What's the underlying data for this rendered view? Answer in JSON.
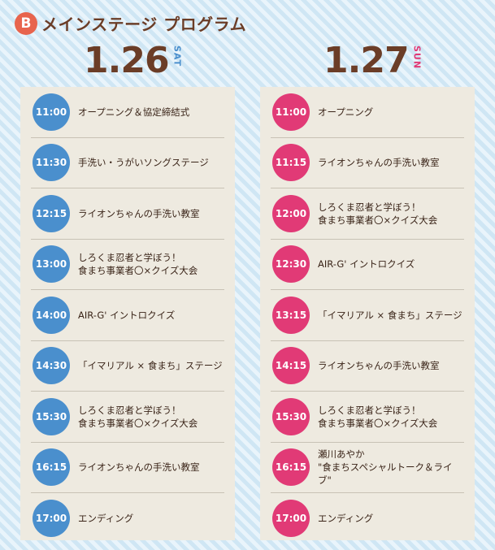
{
  "header": {
    "badge": "B",
    "title": "メインステージ プログラム"
  },
  "colors": {
    "sat": "#4a8fcd",
    "sun": "#e13a76",
    "badge": "#e8644d",
    "heading": "#6b3d27"
  },
  "days": [
    {
      "date": "1.26",
      "weekday": "SAT",
      "events": [
        {
          "time": "11:00",
          "title": "オープニング＆協定締結式"
        },
        {
          "time": "11:30",
          "title": "手洗い・うがいソングステージ"
        },
        {
          "time": "12:15",
          "title": "ライオンちゃんの手洗い教室"
        },
        {
          "time": "13:00",
          "title": "しろくま忍者と学ぼう！\n食まち事業者〇×クイズ大会"
        },
        {
          "time": "14:00",
          "title": "AIR-G' イントロクイズ"
        },
        {
          "time": "14:30",
          "title": "「イマリアル × 食まち」ステージ"
        },
        {
          "time": "15:30",
          "title": "しろくま忍者と学ぼう！\n食まち事業者〇×クイズ大会"
        },
        {
          "time": "16:15",
          "title": "ライオンちゃんの手洗い教室"
        },
        {
          "time": "17:00",
          "title": "エンディング"
        }
      ]
    },
    {
      "date": "1.27",
      "weekday": "SUN",
      "events": [
        {
          "time": "11:00",
          "title": "オープニング"
        },
        {
          "time": "11:15",
          "title": "ライオンちゃんの手洗い教室"
        },
        {
          "time": "12:00",
          "title": "しろくま忍者と学ぼう！\n食まち事業者〇×クイズ大会"
        },
        {
          "time": "12:30",
          "title": "AIR-G' イントロクイズ"
        },
        {
          "time": "13:15",
          "title": "「イマリアル × 食まち」ステージ"
        },
        {
          "time": "14:15",
          "title": "ライオンちゃんの手洗い教室"
        },
        {
          "time": "15:30",
          "title": "しろくま忍者と学ぼう！\n食まち事業者〇×クイズ大会"
        },
        {
          "time": "16:15",
          "title": "瀬川あやか\n\"食まちスペシャルトーク＆ライブ\""
        },
        {
          "time": "17:00",
          "title": "エンディング"
        }
      ]
    }
  ]
}
